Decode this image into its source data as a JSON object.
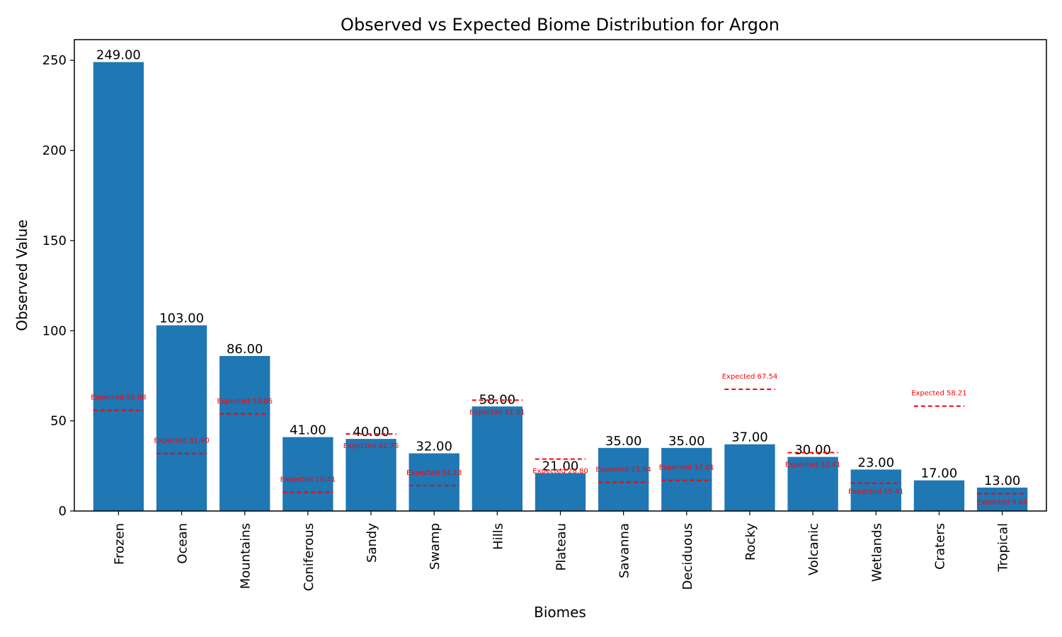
{
  "chart_data": {
    "type": "bar",
    "title": "Observed vs Expected Biome Distribution for Argon",
    "xlabel": "Biomes",
    "ylabel": "Observed Value",
    "ylim": [
      0,
      261.45
    ],
    "yticks": [
      0,
      50,
      100,
      150,
      200,
      250
    ],
    "categories": [
      "Frozen",
      "Ocean",
      "Mountains",
      "Coniferous",
      "Sandy",
      "Swamp",
      "Hills",
      "Plateau",
      "Savanna",
      "Deciduous",
      "Rocky",
      "Volcanic",
      "Wetlands",
      "Craters",
      "Tropical"
    ],
    "values": [
      249,
      103,
      86,
      41,
      40,
      32,
      58,
      21,
      35,
      35,
      37,
      30,
      23,
      17,
      13
    ],
    "value_labels": [
      "249.00",
      "103.00",
      "86.00",
      "41.00",
      "40.00",
      "32.00",
      "58.00",
      "21.00",
      "35.00",
      "35.00",
      "37.00",
      "30.00",
      "23.00",
      "17.00",
      "13.00"
    ],
    "expected": [
      55.88,
      31.9,
      53.86,
      10.41,
      42.76,
      14.13,
      61.51,
      28.8,
      15.94,
      17.01,
      67.54,
      32.41,
      15.41,
      58.21,
      9.6
    ],
    "expected_labels": [
      "Expected 55.88",
      "Expected 31.90",
      "Expected 53.86",
      "Expected 10.41",
      "Expected 42.76",
      "Expected 14.13",
      "Expected 61.51",
      "Expected 28.80",
      "Expected 15.94",
      "Expected 17.01",
      "Expected 67.54",
      "Expected 32.41",
      "Expected 15.41",
      "Expected 58.21",
      "Expected 9.60"
    ],
    "bar_color": "#1f77b4",
    "expected_color": "#ff0000",
    "grid": false,
    "legend": "none"
  }
}
